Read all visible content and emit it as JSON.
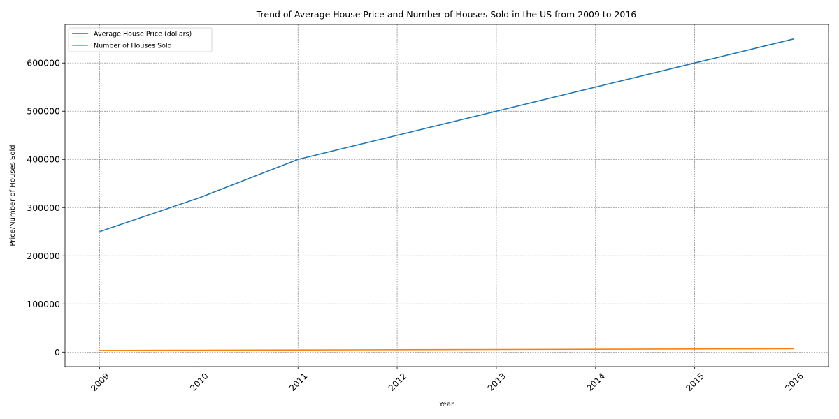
{
  "chart_data": {
    "type": "line",
    "title": "Trend of Average House Price and Number of Houses Sold in the US from 2009 to 2016",
    "xlabel": "Year",
    "ylabel": "Price/Number of Houses Sold",
    "categories": [
      "2009",
      "2010",
      "2011",
      "2012",
      "2013",
      "2014",
      "2015",
      "2016"
    ],
    "series": [
      {
        "name": "Average House Price (dollars)",
        "color": "#1f77b4",
        "values": [
          250000,
          320000,
          400000,
          450000,
          500000,
          550000,
          600000,
          650000
        ]
      },
      {
        "name": "Number of Houses Sold",
        "color": "#ff7f0e",
        "values": [
          3500,
          4000,
          4500,
          5000,
          5500,
          6000,
          6500,
          7000
        ]
      }
    ],
    "ylim": [
      -30000,
      680000
    ],
    "yticks": [
      0,
      100000,
      200000,
      300000,
      400000,
      500000,
      600000
    ],
    "grid": true,
    "legend_position": "top-left",
    "xtick_rotation": 45
  }
}
